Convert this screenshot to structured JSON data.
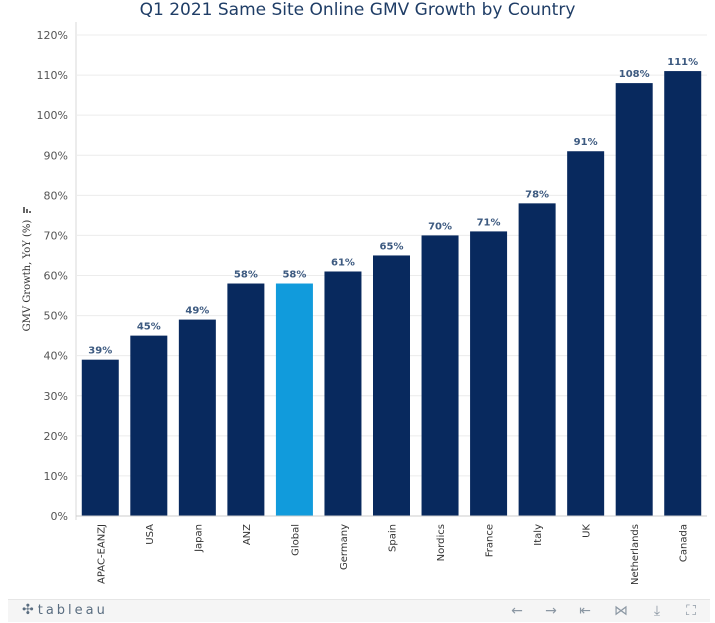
{
  "chart_data": {
    "type": "bar",
    "title": "Q1 2021 Same Site Online GMV Growth by Country",
    "ylabel": "GMV Growth, YoY (%)",
    "xlabel": "",
    "ylim": [
      0,
      120
    ],
    "yticks": [
      0,
      10,
      20,
      30,
      40,
      50,
      60,
      70,
      80,
      90,
      100,
      110,
      120
    ],
    "ytick_labels": [
      "0%",
      "10%",
      "20%",
      "30%",
      "40%",
      "50%",
      "60%",
      "70%",
      "80%",
      "90%",
      "100%",
      "110%",
      "120%"
    ],
    "grid": true,
    "categories": [
      "APAC-EANZJ",
      "USA",
      "Japan",
      "ANZ",
      "Global",
      "Germany",
      "Spain",
      "Nordics",
      "France",
      "Italy",
      "UK",
      "Netherlands",
      "Canada"
    ],
    "values": [
      39,
      45,
      49,
      58,
      58,
      61,
      65,
      70,
      71,
      78,
      91,
      108,
      111
    ],
    "data_labels": [
      "39%",
      "45%",
      "49%",
      "58%",
      "58%",
      "61%",
      "65%",
      "70%",
      "71%",
      "78%",
      "91%",
      "108%",
      "111%"
    ],
    "highlight_category": "Global",
    "colors": {
      "bar": "#08295e",
      "highlight": "#119bdc",
      "grid": "#ececec"
    }
  },
  "toolbar": {
    "logo_text": "tableau",
    "logo_icon": "tableau-cross-icon",
    "buttons": [
      {
        "name": "undo-icon",
        "glyph": "←"
      },
      {
        "name": "redo-icon",
        "glyph": "→"
      },
      {
        "name": "revert-icon",
        "glyph": "⇤"
      },
      {
        "name": "share-icon",
        "glyph": "⋈"
      },
      {
        "name": "download-icon",
        "glyph": "⤓"
      },
      {
        "name": "fullscreen-icon",
        "glyph": "⛶"
      }
    ]
  }
}
